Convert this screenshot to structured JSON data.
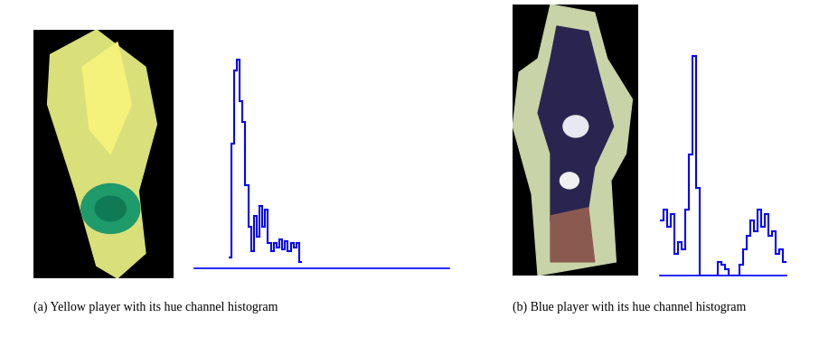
{
  "chart_data": [
    {
      "type": "histogram",
      "title": "(a) Yellow player with its hue channel histogram",
      "bins": [
        24,
        26,
        28,
        30,
        32,
        34,
        36,
        38,
        40,
        42,
        44,
        46,
        48,
        50,
        52,
        54,
        56,
        58,
        60,
        62,
        64,
        66,
        68,
        70,
        72,
        74,
        76
      ],
      "counts": [
        5,
        60,
        95,
        100,
        80,
        70,
        40,
        20,
        8,
        25,
        15,
        30,
        20,
        28,
        12,
        8,
        12,
        10,
        14,
        9,
        13,
        8,
        12,
        10,
        12,
        3
      ],
      "color": "#0000ff",
      "xlim": [
        0,
        180
      ],
      "ylim": [
        0,
        105
      ],
      "tick_labels": false
    },
    {
      "type": "histogram",
      "title": "(b) Blue player with its hue channel histogram",
      "bins": [
        0,
        2,
        4,
        6,
        8,
        10,
        12,
        14,
        16,
        18,
        20,
        22,
        24,
        26,
        28,
        30,
        32,
        34,
        36,
        38,
        40,
        42,
        44,
        46,
        48,
        50,
        52,
        54,
        56,
        58,
        60,
        62,
        64,
        66,
        68,
        70
      ],
      "counts": [
        25,
        30,
        22,
        28,
        10,
        15,
        12,
        30,
        55,
        100,
        40,
        0,
        0,
        0,
        0,
        0,
        6,
        5,
        3,
        0,
        0,
        0,
        5,
        12,
        18,
        25,
        20,
        30,
        22,
        28,
        18,
        20,
        10,
        12,
        6
      ],
      "color": "#0000ff",
      "xlim": [
        0,
        70
      ],
      "ylim": [
        0,
        105
      ],
      "tick_labels": false
    }
  ]
}
